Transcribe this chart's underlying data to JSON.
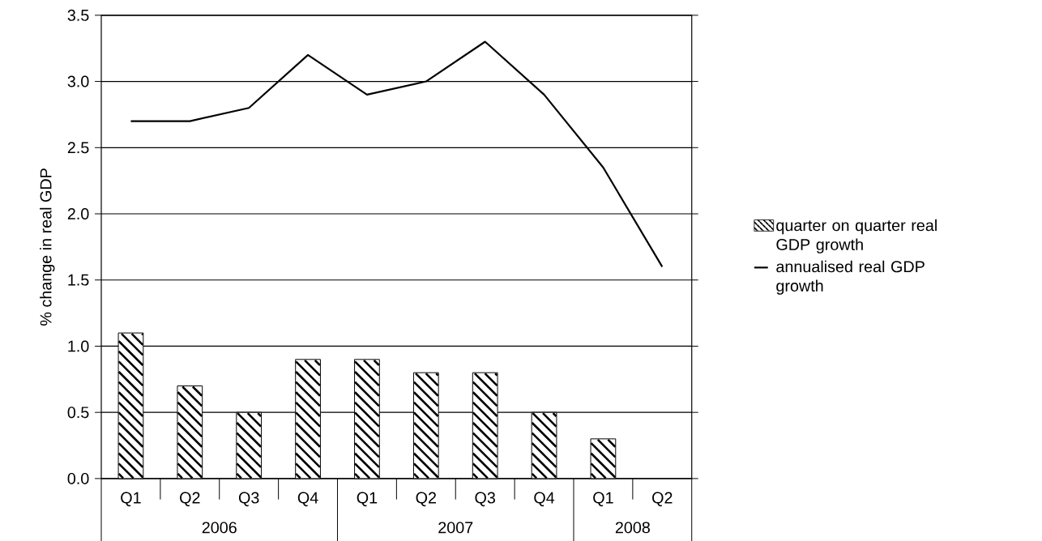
{
  "chart_data": {
    "type": "bar",
    "ylabel": "% change in real GDP",
    "categories": [
      "Q1",
      "Q2",
      "Q3",
      "Q4",
      "Q1",
      "Q2",
      "Q3",
      "Q4",
      "Q1",
      "Q2"
    ],
    "series": [
      {
        "name": "quarter on quarter real GDP growth",
        "color": "#000000",
        "values": [
          1.1,
          0.7,
          0.5,
          0.9,
          0.9,
          0.8,
          0.8,
          0.5,
          0.3,
          null
        ]
      },
      {
        "name": "annualised real GDP growth",
        "type": "line",
        "color": "#000000",
        "values": [
          2.7,
          2.7,
          2.8,
          3.2,
          2.9,
          3.0,
          3.3,
          2.9,
          2.35,
          1.6
        ]
      }
    ],
    "ylim": [
      0,
      3.5
    ],
    "yticks": [
      {
        "value": 0,
        "label": "0.0"
      },
      0.5,
      {
        "value": 1,
        "label": "1.0"
      },
      1.5,
      {
        "value": 2,
        "label": "2.0"
      },
      2.5,
      {
        "value": 3,
        "label": "3.0"
      },
      3.5
    ],
    "grid": "y",
    "legend": "right",
    "annotations": [
      "2006",
      "2007",
      "2008"
    ]
  }
}
